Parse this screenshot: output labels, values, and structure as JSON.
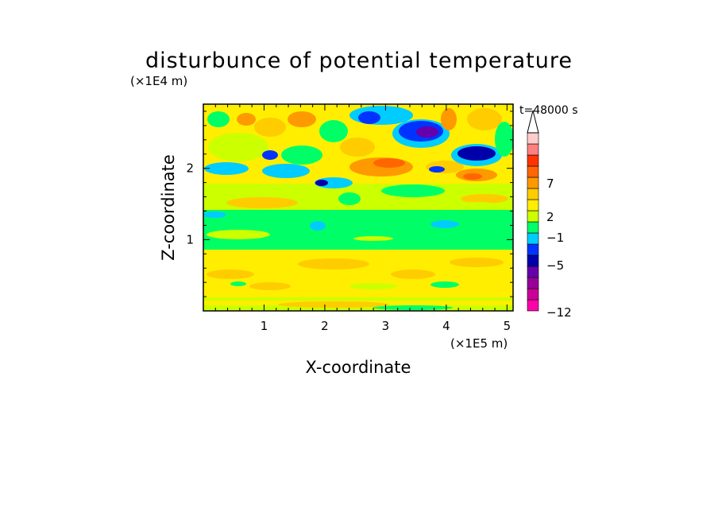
{
  "chart_data": {
    "type": "heatmap",
    "title": "disturbunce of potential temperature",
    "xlabel": "X-coordinate",
    "ylabel": "Z-coordinate",
    "x_unit": "(×1E5 m)",
    "z_unit": "(×1E4 m)",
    "time_label": "t=48000 s",
    "xlim": [
      0,
      5.1
    ],
    "ylim": [
      0,
      2.9
    ],
    "x_ticks": [
      "1",
      "2",
      "3",
      "4",
      "5"
    ],
    "y_ticks": [
      "1",
      "2"
    ],
    "colorbar": {
      "tick_labels": [
        "7",
        "2",
        "−1",
        "−5",
        "−12"
      ],
      "colors": [
        "#ff00aa",
        "#cc0099",
        "#990099",
        "#6600aa",
        "#0000aa",
        "#0033ff",
        "#00ccff",
        "#00ff66",
        "#ccff00",
        "#ffee00",
        "#ffcc00",
        "#ff9900",
        "#ff6600",
        "#ff3300",
        "#ff8080",
        "#ffcccc"
      ],
      "extend": "max"
    }
  }
}
